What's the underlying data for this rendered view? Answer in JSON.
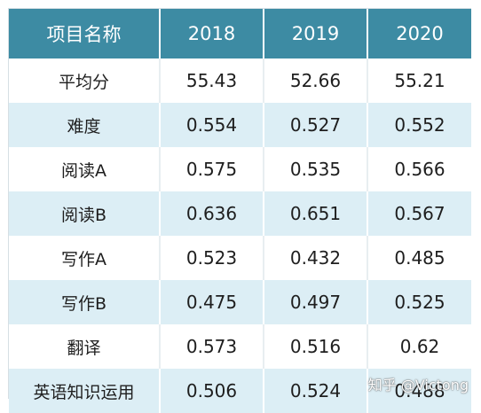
{
  "table": {
    "headers": [
      "项目名称",
      "2018",
      "2019",
      "2020"
    ],
    "rows": [
      [
        "平均分",
        "55.43",
        "52.66",
        "55.21"
      ],
      [
        "难度",
        "0.554",
        "0.527",
        "0.552"
      ],
      [
        "阅读A",
        "0.575",
        "0.535",
        "0.566"
      ],
      [
        "阅读B",
        "0.636",
        "0.651",
        "0.567"
      ],
      [
        "写作A",
        "0.523",
        "0.432",
        "0.485"
      ],
      [
        "写作B",
        "0.475",
        "0.497",
        "0.525"
      ],
      [
        "翻译",
        "0.573",
        "0.516",
        "0.62"
      ],
      [
        "英语知识运用",
        "0.506",
        "0.524",
        "0.488"
      ]
    ]
  },
  "watermark": "知乎 @Victong",
  "colors": {
    "header_bg": "#3d8ba3",
    "stripe_bg": "#dceef5"
  }
}
